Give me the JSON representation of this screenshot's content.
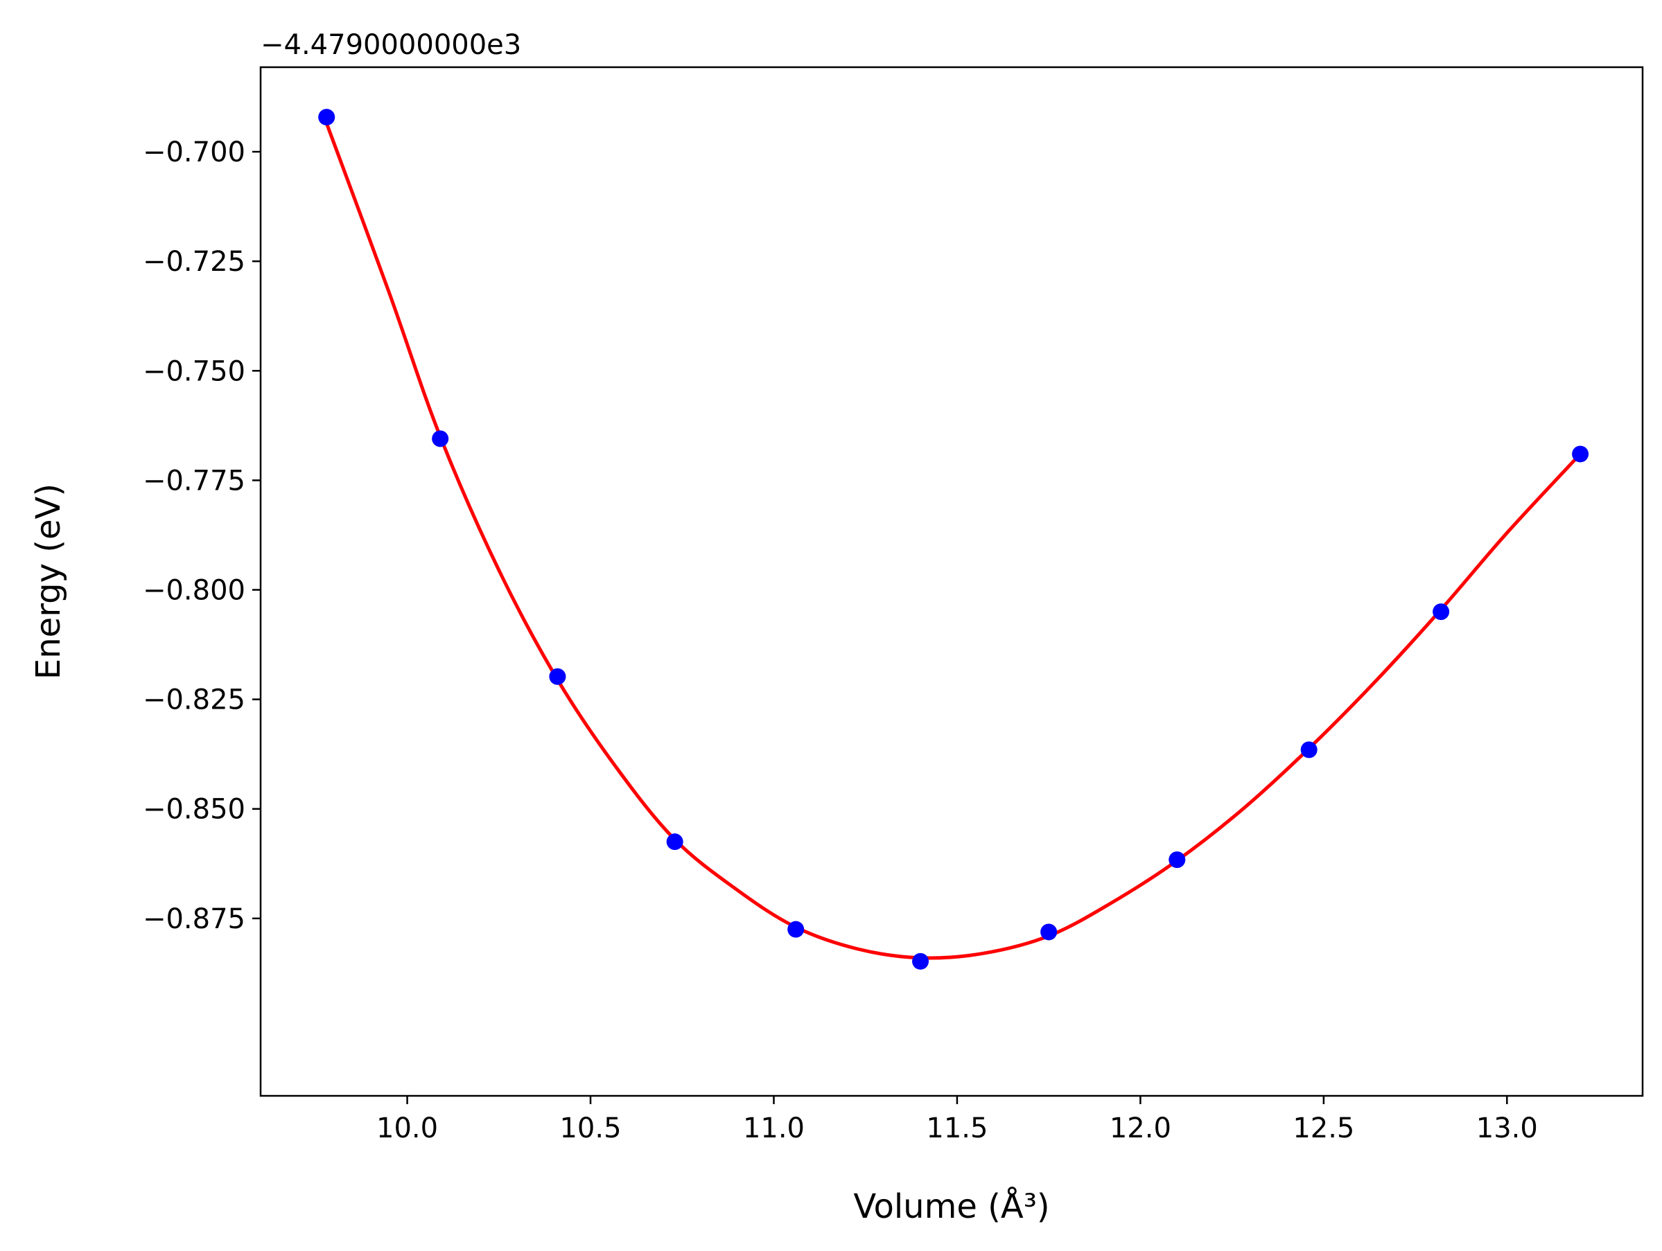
{
  "chart_data": {
    "type": "scatter",
    "xlabel": "Volume (Å³)",
    "ylabel": "Energy (eV)",
    "y_offset_label": "−4.4790000000e3",
    "xlim": [
      9.6,
      13.37
    ],
    "ylim": [
      -0.9155,
      -0.6807
    ],
    "x_ticks": [
      10.0,
      10.5,
      11.0,
      11.5,
      12.0,
      12.5,
      13.0
    ],
    "x_tick_labels": [
      "10.0",
      "10.5",
      "11.0",
      "11.5",
      "12.0",
      "12.5",
      "13.0"
    ],
    "y_ticks": [
      -0.7,
      -0.725,
      -0.75,
      -0.775,
      -0.8,
      -0.825,
      -0.85,
      -0.875
    ],
    "y_tick_labels": [
      "−0.700",
      "−0.725",
      "−0.750",
      "−0.775",
      "−0.800",
      "−0.825",
      "−0.850",
      "−0.875"
    ],
    "grid": false,
    "series": [
      {
        "kind": "points",
        "color": "#0000ff",
        "x": [
          9.78,
          10.09,
          10.41,
          10.73,
          11.06,
          11.4,
          11.75,
          12.1,
          12.46,
          12.82,
          13.2
        ],
        "y": [
          -0.6921,
          -0.7655,
          -0.8198,
          -0.8575,
          -0.8775,
          -0.8848,
          -0.8781,
          -0.8616,
          -0.8365,
          -0.805,
          -0.769
        ]
      },
      {
        "kind": "fit",
        "color": "#ff0000",
        "x": [
          9.78,
          9.95,
          10.09,
          10.25,
          10.41,
          10.57,
          10.73,
          10.9,
          11.06,
          11.23,
          11.4,
          11.57,
          11.75,
          11.92,
          12.1,
          12.28,
          12.46,
          12.64,
          12.82,
          13.0,
          13.2
        ],
        "y": [
          -0.6935,
          -0.732,
          -0.765,
          -0.7955,
          -0.8205,
          -0.8405,
          -0.857,
          -0.8685,
          -0.877,
          -0.882,
          -0.884,
          -0.883,
          -0.879,
          -0.8715,
          -0.8618,
          -0.85,
          -0.8362,
          -0.821,
          -0.8045,
          -0.787,
          -0.769
        ]
      }
    ]
  }
}
